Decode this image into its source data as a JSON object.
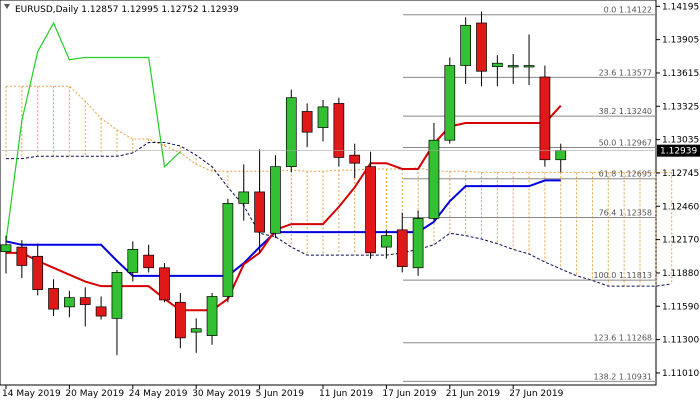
{
  "chart_data": {
    "type": "candlestick",
    "title": "EURUSD,Daily 1.12857 1.12995 1.12752 1.12939",
    "symbol": "EURUSD",
    "timeframe": "Daily",
    "ohlc_header": {
      "open": 1.12857,
      "high": 1.12995,
      "low": 1.12752,
      "close": 1.12939
    },
    "current_price_label": "1.12939",
    "ylim": [
      1.109,
      1.1425
    ],
    "price_ticks": [
      "1.14195",
      "1.13905",
      "1.13615",
      "1.13325",
      "1.13035",
      "1.12745",
      "1.12460",
      "1.12170",
      "1.11880",
      "1.11590",
      "1.11300",
      "1.11010"
    ],
    "date_ticks": [
      {
        "label": "14 May 2019",
        "index": 0
      },
      {
        "label": "20 May 2019",
        "index": 4
      },
      {
        "label": "24 May 2019",
        "index": 8
      },
      {
        "label": "30 May 2019",
        "index": 12
      },
      {
        "label": "5 Jun 2019",
        "index": 16
      },
      {
        "label": "11 Jun 2019",
        "index": 20
      },
      {
        "label": "17 Jun 2019",
        "index": 24
      },
      {
        "label": "21 Jun 2019",
        "index": 28
      },
      {
        "label": "27 Jun 2019",
        "index": 32
      }
    ],
    "candles": [
      {
        "o": 1.1206,
        "h": 1.122,
        "l": 1.1187,
        "c": 1.1212
      },
      {
        "o": 1.121,
        "h": 1.1216,
        "l": 1.1183,
        "c": 1.1194
      },
      {
        "o": 1.1202,
        "h": 1.1213,
        "l": 1.1168,
        "c": 1.1173
      },
      {
        "o": 1.1174,
        "h": 1.1182,
        "l": 1.115,
        "c": 1.1156
      },
      {
        "o": 1.1158,
        "h": 1.1172,
        "l": 1.1149,
        "c": 1.1166
      },
      {
        "o": 1.1166,
        "h": 1.1175,
        "l": 1.1141,
        "c": 1.116
      },
      {
        "o": 1.1158,
        "h": 1.1167,
        "l": 1.1147,
        "c": 1.115
      },
      {
        "o": 1.1148,
        "h": 1.119,
        "l": 1.1116,
        "c": 1.1188
      },
      {
        "o": 1.1188,
        "h": 1.1215,
        "l": 1.118,
        "c": 1.1208
      },
      {
        "o": 1.1203,
        "h": 1.1212,
        "l": 1.1188,
        "c": 1.1192
      },
      {
        "o": 1.1192,
        "h": 1.1196,
        "l": 1.1162,
        "c": 1.1164
      },
      {
        "o": 1.1162,
        "h": 1.117,
        "l": 1.1122,
        "c": 1.1131
      },
      {
        "o": 1.1136,
        "h": 1.1148,
        "l": 1.1118,
        "c": 1.1139
      },
      {
        "o": 1.1133,
        "h": 1.117,
        "l": 1.1125,
        "c": 1.1167
      },
      {
        "o": 1.1167,
        "h": 1.1252,
        "l": 1.1162,
        "c": 1.1248
      },
      {
        "o": 1.1248,
        "h": 1.1282,
        "l": 1.1233,
        "c": 1.1258
      },
      {
        "o": 1.1258,
        "h": 1.1295,
        "l": 1.1205,
        "c": 1.1223
      },
      {
        "o": 1.1222,
        "h": 1.129,
        "l": 1.1218,
        "c": 1.128
      },
      {
        "o": 1.128,
        "h": 1.1347,
        "l": 1.1275,
        "c": 1.134
      },
      {
        "o": 1.1328,
        "h": 1.1335,
        "l": 1.1297,
        "c": 1.131
      },
      {
        "o": 1.1314,
        "h": 1.1338,
        "l": 1.1302,
        "c": 1.1332
      },
      {
        "o": 1.1335,
        "h": 1.134,
        "l": 1.128,
        "c": 1.1288
      },
      {
        "o": 1.129,
        "h": 1.13,
        "l": 1.127,
        "c": 1.1283
      },
      {
        "o": 1.128,
        "h": 1.1293,
        "l": 1.12,
        "c": 1.1205
      },
      {
        "o": 1.121,
        "h": 1.1225,
        "l": 1.12,
        "c": 1.122
      },
      {
        "o": 1.1225,
        "h": 1.124,
        "l": 1.1188,
        "c": 1.1193
      },
      {
        "o": 1.1192,
        "h": 1.1242,
        "l": 1.1185,
        "c": 1.1235
      },
      {
        "o": 1.1235,
        "h": 1.1318,
        "l": 1.1233,
        "c": 1.1303
      },
      {
        "o": 1.1303,
        "h": 1.1375,
        "l": 1.13,
        "c": 1.1368
      },
      {
        "o": 1.1368,
        "h": 1.141,
        "l": 1.1352,
        "c": 1.1403
      },
      {
        "o": 1.1405,
        "h": 1.1415,
        "l": 1.135,
        "c": 1.1363
      },
      {
        "o": 1.1367,
        "h": 1.1377,
        "l": 1.135,
        "c": 1.137
      },
      {
        "o": 1.1368,
        "h": 1.1378,
        "l": 1.1352,
        "c": 1.1368
      },
      {
        "o": 1.1368,
        "h": 1.1395,
        "l": 1.1351,
        "c": 1.1368
      },
      {
        "o": 1.1358,
        "h": 1.1368,
        "l": 1.128,
        "c": 1.1286
      },
      {
        "o": 1.1286,
        "h": 1.13,
        "l": 1.1275,
        "c": 1.1294
      }
    ],
    "lines": {
      "tenkan_red": [
        1.1205,
        1.1205,
        1.1198,
        1.1192,
        1.1186,
        1.118,
        1.1176,
        1.1176,
        1.1176,
        1.1176,
        1.1165,
        1.1155,
        1.1155,
        1.1155,
        1.1165,
        1.1195,
        1.1205,
        1.1225,
        1.123,
        1.123,
        1.123,
        1.1245,
        1.1262,
        1.1283,
        1.1283,
        1.1278,
        1.1278,
        1.13,
        1.1315,
        1.1318,
        1.1318,
        1.1318,
        1.1318,
        1.1318,
        1.1318,
        1.1333
      ],
      "kijun_blue": [
        1.1215,
        1.1212,
        1.1212,
        1.1212,
        1.1212,
        1.1212,
        1.1212,
        1.1198,
        1.1185,
        1.1185,
        1.1185,
        1.1185,
        1.1185,
        1.1185,
        1.1185,
        1.1196,
        1.121,
        1.1223,
        1.1223,
        1.1223,
        1.1223,
        1.1223,
        1.1223,
        1.1223,
        1.1223,
        1.1223,
        1.1223,
        1.1232,
        1.125,
        1.1263,
        1.1263,
        1.1263,
        1.1263,
        1.1263,
        1.1268,
        1.1268
      ],
      "chikou_green": [
        1.1215,
        1.132,
        1.138,
        1.1405,
        1.1373,
        1.1375,
        1.1375,
        1.1375,
        1.1375,
        1.1375,
        1.128,
        1.1293
      ],
      "span_b_dashed": [
        1.1287,
        1.1287,
        1.1289,
        1.1289,
        1.1289,
        1.1289,
        1.1289,
        1.1289,
        1.1292,
        1.1301,
        1.1301,
        1.1298,
        1.129,
        1.128,
        1.1262,
        1.1246,
        1.1222,
        1.1219,
        1.121,
        1.1203,
        1.1203,
        1.1203,
        1.1203,
        1.1203,
        1.1203,
        1.1205,
        1.1208,
        1.1212,
        1.1222,
        1.122,
        1.1217,
        1.1213,
        1.1208,
        1.1204,
        1.1197,
        1.1191,
        1.1185,
        1.1181,
        1.1176,
        1.1176,
        1.1176,
        1.1176,
        1.1178
      ],
      "span_a_dotted": [
        1.135,
        1.135,
        1.135,
        1.135,
        1.135,
        1.1337,
        1.1322,
        1.1312,
        1.1304,
        1.1304,
        1.1298,
        1.1292,
        1.1282,
        1.1276,
        1.1276,
        1.1276,
        1.1276,
        1.1276,
        1.1277,
        1.1276,
        1.1276,
        1.1277,
        1.1277,
        1.1278,
        1.1278,
        1.1278,
        1.1279,
        1.1276,
        1.1276,
        1.1276,
        1.1275,
        1.1275,
        1.1275,
        1.1275,
        1.1275,
        1.1275,
        1.1275
      ]
    },
    "fibonacci": [
      {
        "label": "0.0 1.14122",
        "value": 1.14122
      },
      {
        "label": "23.6 1.13577",
        "value": 1.13577
      },
      {
        "label": "38.2 1.13240",
        "value": 1.1324
      },
      {
        "label": "50.0 1.12967",
        "value": 1.12967
      },
      {
        "label": "61.8 1.12695",
        "value": 1.12695
      },
      {
        "label": "76.4 1.12358",
        "value": 1.12358
      },
      {
        "label": "100.0 1.11813",
        "value": 1.11813
      },
      {
        "label": "123.6 1.11268",
        "value": 1.11268
      },
      {
        "label": "138.2 1.10931",
        "value": 1.10931
      }
    ],
    "colors": {
      "bull": "#33c133",
      "bear": "#e01818",
      "tenkan": "#d60000",
      "kijun": "#0000e0",
      "chikou": "#22cc22",
      "cloud": "#e8a040",
      "span_b": "#0a0a50",
      "fib": "#888888",
      "current_bg": "#000000"
    }
  }
}
